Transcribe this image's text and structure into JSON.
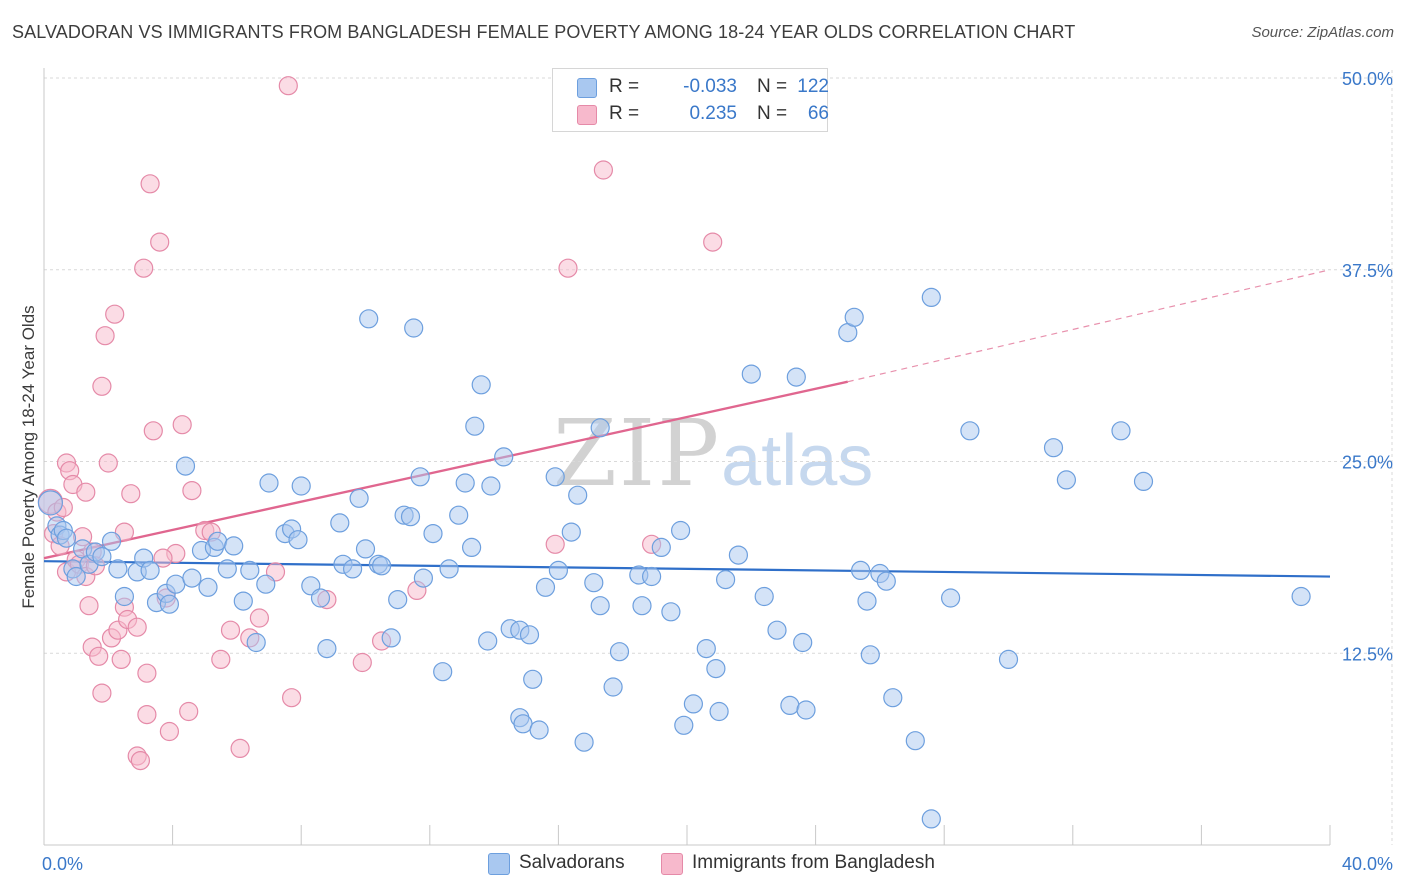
{
  "header": {
    "title": "SALVADORAN VS IMMIGRANTS FROM BANGLADESH FEMALE POVERTY AMONG 18-24 YEAR OLDS CORRELATION CHART",
    "source": "Source: ZipAtlas.com"
  },
  "watermark": {
    "zip": "ZIP",
    "atlas": "atlas"
  },
  "legend": {
    "rows": [
      {
        "r_label": "R =",
        "r_value": "-0.033",
        "n_label": "N =",
        "n_value": "122",
        "color": "#a9c8f0",
        "border": "#6d9fde"
      },
      {
        "r_label": "R =",
        "r_value": "0.235",
        "n_label": "N =",
        "n_value": "66",
        "color": "#f7b9cc",
        "border": "#e58aa8"
      }
    ]
  },
  "bottom_legend": {
    "items": [
      {
        "label": "Salvadorans",
        "color": "#a9c8f0",
        "border": "#6d9fde"
      },
      {
        "label": "Immigrants from Bangladesh",
        "color": "#f7b9cc",
        "border": "#e58aa8"
      }
    ]
  },
  "chart_data": {
    "type": "scatter",
    "title": "SALVADORAN VS IMMIGRANTS FROM BANGLADESH FEMALE POVERTY AMONG 18-24 YEAR OLDS CORRELATION CHART",
    "xlabel": "",
    "ylabel": "Female Poverty Among 18-24 Year Olds",
    "xlim": [
      0,
      40
    ],
    "ylim": [
      0,
      50
    ],
    "x_tick_labels": [
      "0.0%",
      "40.0%"
    ],
    "y_tick_labels": [
      "12.5%",
      "25.0%",
      "37.5%",
      "50.0%"
    ],
    "y_ticks": [
      12.5,
      25,
      37.5,
      50
    ],
    "grid": true,
    "legend_position": "top-center",
    "series": [
      {
        "name": "Salvadorans",
        "color": "#6d9fde",
        "fill": "#a9c8f0",
        "r": "-0.033",
        "n": "122",
        "trend": {
          "x0": 0,
          "y0": 18.5,
          "x1": 40,
          "y1": 17.5
        },
        "points": [
          [
            0.2,
            22.3
          ],
          [
            0.4,
            20.8
          ],
          [
            0.5,
            20.2
          ],
          [
            0.6,
            20.5
          ],
          [
            0.7,
            20.0
          ],
          [
            0.9,
            18.0
          ],
          [
            1.0,
            17.5
          ],
          [
            1.2,
            19.3
          ],
          [
            1.4,
            18.3
          ],
          [
            1.6,
            19.1
          ],
          [
            1.8,
            18.8
          ],
          [
            2.1,
            19.8
          ],
          [
            2.3,
            18.0
          ],
          [
            2.5,
            16.2
          ],
          [
            2.9,
            17.8
          ],
          [
            3.1,
            18.7
          ],
          [
            3.3,
            17.9
          ],
          [
            3.5,
            15.8
          ],
          [
            3.8,
            16.4
          ],
          [
            3.9,
            15.7
          ],
          [
            4.1,
            17.0
          ],
          [
            4.4,
            24.7
          ],
          [
            4.6,
            17.4
          ],
          [
            4.9,
            19.2
          ],
          [
            5.1,
            16.8
          ],
          [
            5.3,
            19.4
          ],
          [
            5.4,
            19.8
          ],
          [
            5.7,
            18.0
          ],
          [
            5.9,
            19.5
          ],
          [
            6.2,
            15.9
          ],
          [
            6.4,
            17.9
          ],
          [
            6.6,
            13.2
          ],
          [
            6.9,
            17.0
          ],
          [
            7.0,
            23.6
          ],
          [
            7.5,
            20.3
          ],
          [
            7.7,
            20.6
          ],
          [
            7.9,
            19.9
          ],
          [
            8.0,
            23.4
          ],
          [
            8.3,
            16.9
          ],
          [
            8.6,
            16.1
          ],
          [
            8.8,
            12.8
          ],
          [
            9.2,
            21.0
          ],
          [
            9.3,
            18.3
          ],
          [
            9.6,
            18.0
          ],
          [
            9.8,
            22.6
          ],
          [
            10.0,
            19.3
          ],
          [
            10.4,
            18.3
          ],
          [
            10.5,
            18.2
          ],
          [
            10.1,
            34.3
          ],
          [
            10.8,
            13.5
          ],
          [
            11.0,
            16.0
          ],
          [
            11.2,
            21.5
          ],
          [
            11.4,
            21.4
          ],
          [
            11.5,
            33.7
          ],
          [
            11.7,
            24.0
          ],
          [
            11.8,
            17.4
          ],
          [
            12.1,
            20.3
          ],
          [
            12.4,
            11.3
          ],
          [
            12.6,
            18.0
          ],
          [
            12.9,
            21.5
          ],
          [
            13.1,
            23.6
          ],
          [
            13.3,
            19.4
          ],
          [
            13.4,
            27.3
          ],
          [
            13.6,
            30.0
          ],
          [
            13.8,
            13.3
          ],
          [
            13.9,
            23.4
          ],
          [
            14.3,
            25.3
          ],
          [
            14.5,
            14.1
          ],
          [
            14.8,
            8.3
          ],
          [
            14.8,
            14.0
          ],
          [
            14.9,
            7.9
          ],
          [
            15.1,
            13.7
          ],
          [
            15.2,
            10.8
          ],
          [
            15.4,
            7.5
          ],
          [
            15.6,
            16.8
          ],
          [
            15.9,
            24.0
          ],
          [
            16.0,
            17.9
          ],
          [
            16.4,
            20.4
          ],
          [
            16.6,
            22.8
          ],
          [
            16.8,
            6.7
          ],
          [
            17.1,
            17.1
          ],
          [
            17.3,
            15.6
          ],
          [
            17.3,
            27.2
          ],
          [
            17.7,
            10.3
          ],
          [
            17.9,
            12.6
          ],
          [
            18.5,
            17.6
          ],
          [
            18.6,
            15.6
          ],
          [
            18.9,
            17.5
          ],
          [
            19.2,
            19.4
          ],
          [
            19.5,
            15.2
          ],
          [
            19.8,
            20.5
          ],
          [
            19.9,
            7.8
          ],
          [
            20.2,
            9.2
          ],
          [
            20.6,
            12.8
          ],
          [
            20.9,
            11.5
          ],
          [
            21.2,
            17.3
          ],
          [
            21.0,
            8.7
          ],
          [
            22.0,
            30.7
          ],
          [
            21.6,
            18.9
          ],
          [
            22.4,
            16.2
          ],
          [
            22.8,
            14.0
          ],
          [
            23.2,
            9.1
          ],
          [
            23.4,
            30.5
          ],
          [
            23.6,
            13.2
          ],
          [
            23.7,
            8.8
          ],
          [
            25.0,
            33.4
          ],
          [
            25.2,
            34.4
          ],
          [
            25.4,
            17.9
          ],
          [
            25.7,
            12.4
          ],
          [
            25.6,
            15.9
          ],
          [
            26.0,
            17.7
          ],
          [
            26.2,
            17.2
          ],
          [
            26.4,
            9.6
          ],
          [
            27.1,
            6.8
          ],
          [
            27.6,
            35.7
          ],
          [
            28.2,
            16.1
          ],
          [
            28.8,
            27.0
          ],
          [
            30.0,
            12.1
          ],
          [
            31.4,
            25.9
          ],
          [
            31.8,
            23.8
          ],
          [
            33.5,
            27.0
          ],
          [
            34.2,
            23.7
          ],
          [
            39.1,
            16.2
          ],
          [
            27.6,
            1.7
          ]
        ]
      },
      {
        "name": "Immigrants from Bangladesh",
        "color": "#e58aa8",
        "fill": "#f7b9cc",
        "r": "0.235",
        "n": "66",
        "trend": {
          "x0": 0,
          "y0": 18.7,
          "x1": 25.0,
          "y1": 30.2
        },
        "trend_ext": {
          "x0": 25.0,
          "y0": 30.2,
          "x1": 40,
          "y1": 37.5
        },
        "points": [
          [
            0.2,
            22.4
          ],
          [
            0.3,
            20.3
          ],
          [
            0.4,
            21.7
          ],
          [
            0.5,
            19.5
          ],
          [
            0.6,
            22.0
          ],
          [
            0.7,
            17.8
          ],
          [
            0.7,
            24.9
          ],
          [
            0.8,
            24.4
          ],
          [
            0.9,
            23.5
          ],
          [
            1.0,
            18.6
          ],
          [
            1.1,
            18.3
          ],
          [
            1.2,
            20.1
          ],
          [
            1.3,
            17.5
          ],
          [
            1.3,
            23.0
          ],
          [
            1.4,
            15.6
          ],
          [
            1.5,
            19.1
          ],
          [
            1.5,
            12.9
          ],
          [
            1.6,
            18.2
          ],
          [
            1.7,
            12.3
          ],
          [
            1.8,
            9.9
          ],
          [
            1.8,
            29.9
          ],
          [
            1.9,
            33.2
          ],
          [
            2.0,
            24.9
          ],
          [
            2.1,
            13.5
          ],
          [
            2.2,
            34.6
          ],
          [
            2.3,
            14.0
          ],
          [
            2.4,
            12.1
          ],
          [
            2.5,
            20.4
          ],
          [
            2.5,
            15.5
          ],
          [
            2.6,
            14.7
          ],
          [
            2.7,
            22.9
          ],
          [
            2.9,
            5.8
          ],
          [
            2.9,
            14.2
          ],
          [
            3.0,
            5.5
          ],
          [
            3.1,
            37.6
          ],
          [
            3.2,
            8.5
          ],
          [
            3.2,
            11.2
          ],
          [
            3.3,
            43.1
          ],
          [
            3.4,
            27.0
          ],
          [
            3.6,
            39.3
          ],
          [
            3.8,
            16.1
          ],
          [
            3.9,
            7.4
          ],
          [
            4.1,
            19.0
          ],
          [
            4.3,
            27.4
          ],
          [
            4.5,
            8.7
          ],
          [
            4.6,
            23.1
          ],
          [
            5.0,
            20.5
          ],
          [
            5.2,
            20.4
          ],
          [
            5.5,
            12.1
          ],
          [
            5.8,
            14.0
          ],
          [
            6.1,
            6.3
          ],
          [
            6.4,
            13.5
          ],
          [
            7.2,
            17.8
          ],
          [
            7.7,
            9.6
          ],
          [
            7.6,
            49.5
          ],
          [
            8.8,
            16.0
          ],
          [
            9.9,
            11.9
          ],
          [
            10.5,
            13.3
          ],
          [
            11.6,
            16.6
          ],
          [
            15.9,
            19.6
          ],
          [
            16.3,
            37.6
          ],
          [
            17.4,
            44.0
          ],
          [
            18.9,
            19.6
          ],
          [
            20.8,
            39.3
          ],
          [
            6.7,
            14.8
          ],
          [
            3.7,
            18.7
          ]
        ]
      }
    ]
  }
}
